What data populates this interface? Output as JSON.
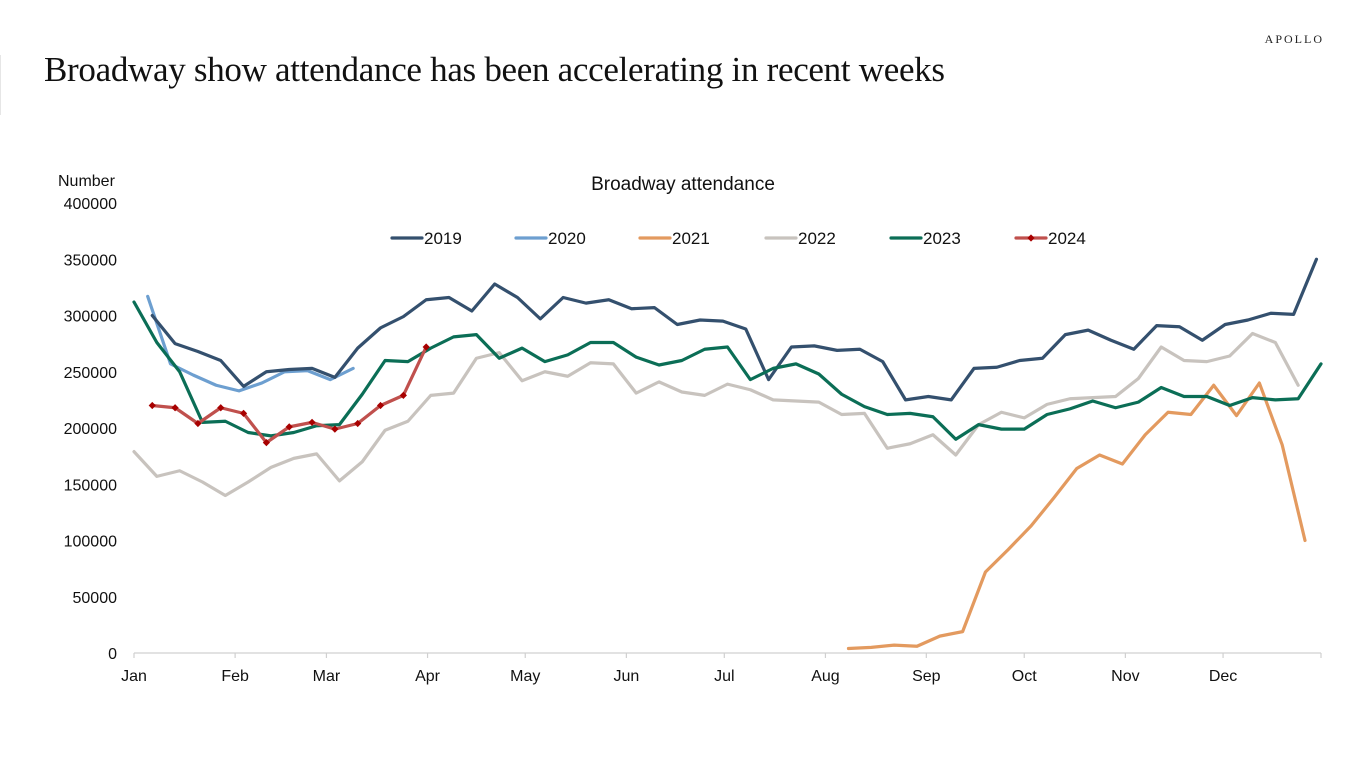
{
  "header": {
    "brand": "APOLLO",
    "headline": "Broadway show attendance has been accelerating in recent weeks"
  },
  "chart_data": {
    "type": "line",
    "title": "Broadway attendance",
    "ylabel": "Number",
    "xlabel": "",
    "ylim": [
      0,
      400000
    ],
    "yticks": [
      0,
      50000,
      100000,
      150000,
      200000,
      250000,
      300000,
      350000,
      400000
    ],
    "ytick_labels": [
      "0",
      "50000",
      "100000",
      "150000",
      "200000",
      "250000",
      "300000",
      "350000",
      "400000"
    ],
    "x_unit": "week of year",
    "xlim_weeks": [
      0,
      52
    ],
    "xtick_labels": [
      "Jan",
      "Feb",
      "Mar",
      "Apr",
      "May",
      "Jun",
      "Jul",
      "Aug",
      "Sep",
      "Oct",
      "Nov",
      "Dec"
    ],
    "xtick_weeks": [
      0,
      4.43,
      8.43,
      12.86,
      17.14,
      21.57,
      25.86,
      30.29,
      34.71,
      39,
      43.43,
      47.71
    ],
    "grid": false,
    "legend_position": "top-center",
    "series": [
      {
        "name": "2019",
        "color": "#34506e",
        "marker": false,
        "start_week": 0.8,
        "values": [
          300000,
          275000,
          268000,
          260000,
          237000,
          250000,
          252000,
          253000,
          245000,
          271000,
          289000,
          299000,
          314000,
          316000,
          304000,
          328000,
          316000,
          297000,
          316000,
          311000,
          314000,
          306000,
          307000,
          292000,
          296000,
          295000,
          288000,
          243000,
          272000,
          273000,
          269000,
          270000,
          259000,
          225000,
          228000,
          225000,
          253000,
          254000,
          260000,
          262000,
          283000,
          287000,
          278000,
          270000,
          291000,
          290000,
          278000,
          292000,
          296000,
          302000,
          301000,
          350000
        ]
      },
      {
        "name": "2020",
        "color": "#6d9fd0",
        "marker": false,
        "start_week": 0.6,
        "values": [
          317000,
          257000,
          247000,
          238000,
          233000,
          240000,
          250000,
          251000,
          243000,
          253000
        ]
      },
      {
        "name": "2021",
        "color": "#e39a5f",
        "marker": false,
        "start_week": 31.3,
        "values": [
          4000,
          5000,
          7000,
          6000,
          15000,
          19000,
          72000,
          92000,
          113000,
          138000,
          164000,
          176000,
          168000,
          194000,
          214000,
          212000,
          238000,
          211000,
          240000,
          185000,
          100000
        ]
      },
      {
        "name": "2022",
        "color": "#c8c3be",
        "marker": false,
        "start_week": 0,
        "values": [
          179000,
          157000,
          162000,
          152000,
          140000,
          152000,
          165000,
          173000,
          177000,
          153000,
          170000,
          198000,
          206000,
          229000,
          231000,
          262000,
          267000,
          242000,
          250000,
          246000,
          258000,
          257000,
          231000,
          241000,
          232000,
          229000,
          239000,
          234000,
          225000,
          224000,
          223000,
          212000,
          213000,
          182000,
          186000,
          194000,
          176000,
          203000,
          214000,
          209000,
          221000,
          226000,
          227000,
          228000,
          244000,
          272000,
          260000,
          259000,
          264000,
          284000,
          276000,
          238000
        ]
      },
      {
        "name": "2023",
        "color": "#0b6e56",
        "marker": false,
        "start_week": 0,
        "values": [
          312000,
          276000,
          250000,
          205000,
          206000,
          196000,
          193000,
          196000,
          202000,
          203000,
          230000,
          260000,
          259000,
          271000,
          281000,
          283000,
          262000,
          271000,
          259000,
          265000,
          276000,
          276000,
          263000,
          256000,
          260000,
          270000,
          272000,
          243000,
          253000,
          257000,
          248000,
          230000,
          219000,
          212000,
          213000,
          210000,
          190000,
          203000,
          199000,
          199000,
          212000,
          217000,
          224000,
          218000,
          223000,
          236000,
          228000,
          228000,
          220000,
          227000,
          225000,
          226000,
          257000
        ]
      },
      {
        "name": "2024",
        "color": "#c0504d",
        "marker": true,
        "marker_color": "#a80000",
        "start_week": 0.8,
        "values": [
          220000,
          218000,
          204000,
          218000,
          213000,
          187000,
          201000,
          205000,
          199000,
          204000,
          220000,
          229000,
          272000
        ]
      }
    ]
  }
}
